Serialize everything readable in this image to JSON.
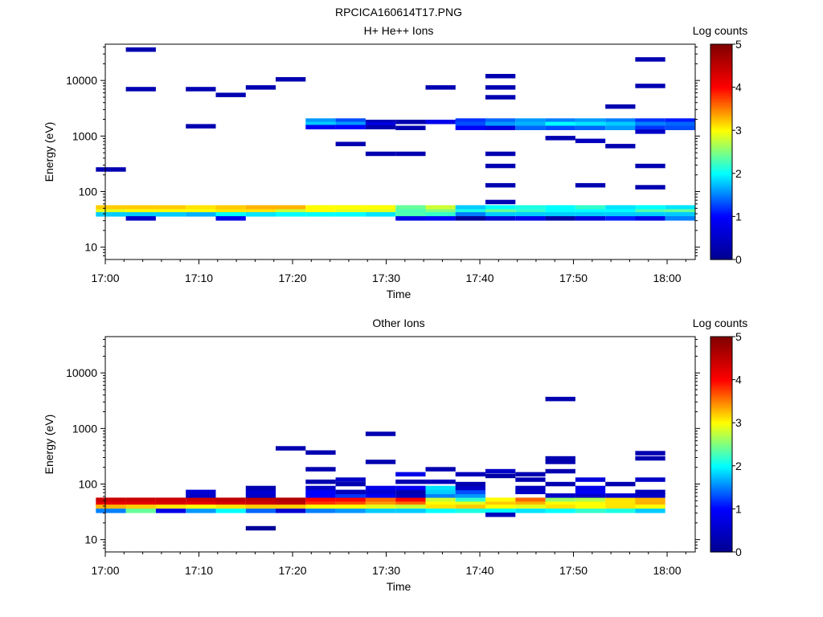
{
  "figure_title": "RPCICA160614T17.PNG",
  "colorbar": {
    "label": "Log counts",
    "ticks": [
      0,
      1,
      2,
      3,
      4,
      5
    ],
    "colormap": [
      "#00008f",
      "#0000ff",
      "#00ffff",
      "#ffff00",
      "#ff0000",
      "#800000"
    ]
  },
  "chart_data": [
    {
      "type": "heatmap",
      "title": "H+ He++ Ions",
      "xlabel": "Time",
      "ylabel": "Energy (eV)",
      "y_scale": "log",
      "ylim": [
        6,
        45000
      ],
      "xlim": [
        "17:00",
        "18:03"
      ],
      "x_ticks": [
        "17:00",
        "17:10",
        "17:20",
        "17:30",
        "17:40",
        "17:50",
        "18:00"
      ],
      "y_ticks": [
        10,
        100,
        1000,
        10000
      ],
      "zlim": [
        0,
        5
      ],
      "time_bins": [
        "17:02.2",
        "17:05.4",
        "17:08.6",
        "17:11.8",
        "17:15.0",
        "17:18.2",
        "17:21.4",
        "17:24.6",
        "17:27.8",
        "17:31.0",
        "17:34.2",
        "17:37.4",
        "17:40.6",
        "17:43.8",
        "17:47.0",
        "17:50.2",
        "17:53.4",
        "17:56.6",
        "17:59.8",
        "18:03.0"
      ],
      "cells": [
        [
          0,
          52,
          3.2
        ],
        [
          0,
          44,
          2.9
        ],
        [
          0,
          39,
          1.8
        ],
        [
          0,
          250,
          0.3
        ],
        [
          1,
          52,
          3.2
        ],
        [
          1,
          44,
          3.0
        ],
        [
          1,
          39,
          1.8
        ],
        [
          1,
          33,
          0.5
        ],
        [
          1,
          7000,
          0.3
        ],
        [
          1,
          36000,
          0.3
        ],
        [
          2,
          52,
          3.2
        ],
        [
          2,
          44,
          3.0
        ],
        [
          2,
          39,
          1.8
        ],
        [
          3,
          52,
          3.1
        ],
        [
          3,
          44,
          3.0
        ],
        [
          3,
          39,
          1.7
        ],
        [
          3,
          1500,
          0.3
        ],
        [
          3,
          7000,
          0.3
        ],
        [
          4,
          52,
          3.2
        ],
        [
          4,
          44,
          3.1
        ],
        [
          4,
          39,
          2.0
        ],
        [
          4,
          33,
          0.8
        ],
        [
          4,
          5500,
          0.3
        ],
        [
          5,
          52,
          3.3
        ],
        [
          5,
          44,
          3.1
        ],
        [
          5,
          39,
          1.9
        ],
        [
          5,
          7500,
          0.3
        ],
        [
          6,
          52,
          3.3
        ],
        [
          6,
          44,
          2.8
        ],
        [
          6,
          39,
          2.0
        ],
        [
          6,
          10500,
          0.3
        ],
        [
          7,
          52,
          3.0
        ],
        [
          7,
          44,
          3.0
        ],
        [
          7,
          39,
          2.0
        ],
        [
          7,
          1900,
          1.6
        ],
        [
          7,
          1650,
          1.8
        ],
        [
          7,
          1450,
          0.9
        ],
        [
          8,
          52,
          3.0
        ],
        [
          8,
          44,
          2.9
        ],
        [
          8,
          39,
          2.0
        ],
        [
          8,
          1900,
          1.3
        ],
        [
          8,
          1650,
          1.6
        ],
        [
          8,
          1450,
          1.0
        ],
        [
          8,
          720,
          0.3
        ],
        [
          9,
          52,
          3.0
        ],
        [
          9,
          44,
          2.9
        ],
        [
          9,
          39,
          1.9
        ],
        [
          9,
          1800,
          0.4
        ],
        [
          9,
          1600,
          0.8
        ],
        [
          9,
          1450,
          0.3
        ],
        [
          9,
          480,
          0.3
        ],
        [
          10,
          52,
          2.4
        ],
        [
          10,
          44,
          2.3
        ],
        [
          10,
          39,
          2.3
        ],
        [
          10,
          33,
          0.8
        ],
        [
          10,
          1800,
          0.3
        ],
        [
          10,
          1400,
          0.3
        ],
        [
          10,
          480,
          0.3
        ],
        [
          11,
          52,
          2.8
        ],
        [
          11,
          44,
          2.5
        ],
        [
          11,
          39,
          2.2
        ],
        [
          11,
          33,
          0.9
        ],
        [
          11,
          1800,
          0.8
        ],
        [
          11,
          7500,
          0.3
        ],
        [
          12,
          52,
          1.8
        ],
        [
          12,
          44,
          2.1
        ],
        [
          12,
          39,
          1.5
        ],
        [
          12,
          33,
          0.1
        ],
        [
          12,
          1900,
          1.2
        ],
        [
          12,
          1650,
          1.3
        ],
        [
          12,
          1400,
          0.9
        ],
        [
          13,
          52,
          2.0
        ],
        [
          13,
          44,
          2.4
        ],
        [
          13,
          39,
          1.8
        ],
        [
          13,
          33,
          0.6
        ],
        [
          13,
          65,
          0.3
        ],
        [
          13,
          1900,
          1.4
        ],
        [
          13,
          1650,
          1.6
        ],
        [
          13,
          1400,
          0.7
        ],
        [
          13,
          480,
          0.3
        ],
        [
          13,
          290,
          0.3
        ],
        [
          13,
          130,
          0.3
        ],
        [
          13,
          5000,
          0.3
        ],
        [
          13,
          7500,
          0.3
        ],
        [
          13,
          12000,
          0.3
        ],
        [
          14,
          52,
          2.1
        ],
        [
          14,
          44,
          2.2
        ],
        [
          14,
          39,
          1.8
        ],
        [
          14,
          33,
          0.8
        ],
        [
          14,
          1900,
          1.6
        ],
        [
          14,
          1650,
          1.7
        ],
        [
          14,
          1400,
          1.4
        ],
        [
          15,
          52,
          2.0
        ],
        [
          15,
          44,
          2.0
        ],
        [
          15,
          39,
          1.8
        ],
        [
          15,
          33,
          0.2
        ],
        [
          15,
          1900,
          1.5
        ],
        [
          15,
          1650,
          2.0
        ],
        [
          15,
          1400,
          1.3
        ],
        [
          15,
          920,
          0.3
        ],
        [
          16,
          52,
          2.2
        ],
        [
          16,
          44,
          2.0
        ],
        [
          16,
          39,
          1.8
        ],
        [
          16,
          33,
          0.7
        ],
        [
          16,
          1900,
          1.6
        ],
        [
          16,
          1650,
          1.9
        ],
        [
          16,
          1400,
          1.4
        ],
        [
          16,
          820,
          0.4
        ],
        [
          16,
          130,
          0.3
        ],
        [
          17,
          52,
          1.9
        ],
        [
          17,
          44,
          2.0
        ],
        [
          17,
          39,
          1.8
        ],
        [
          17,
          33,
          1.1
        ],
        [
          17,
          1900,
          1.5
        ],
        [
          17,
          1650,
          1.8
        ],
        [
          17,
          1400,
          1.6
        ],
        [
          17,
          3400,
          0.3
        ],
        [
          17,
          660,
          0.3
        ],
        [
          18,
          52,
          2.0
        ],
        [
          18,
          44,
          2.3
        ],
        [
          18,
          39,
          1.8
        ],
        [
          18,
          33,
          0.8
        ],
        [
          18,
          1900,
          1.2
        ],
        [
          18,
          1650,
          1.5
        ],
        [
          18,
          1400,
          1.2
        ],
        [
          18,
          1200,
          0.5
        ],
        [
          18,
          24000,
          0.3
        ],
        [
          18,
          8000,
          0.3
        ],
        [
          18,
          290,
          0.3
        ],
        [
          18,
          120,
          0.3
        ],
        [
          19,
          52,
          1.9
        ],
        [
          19,
          44,
          2.4
        ],
        [
          19,
          39,
          1.8
        ],
        [
          19,
          33,
          1.5
        ],
        [
          19,
          1900,
          1.1
        ],
        [
          19,
          1650,
          1.4
        ],
        [
          19,
          1400,
          1.3
        ]
      ]
    },
    {
      "type": "heatmap",
      "title": "Other Ions",
      "xlabel": "Time",
      "ylabel": "Energy (eV)",
      "y_scale": "log",
      "ylim": [
        6,
        45000
      ],
      "xlim": [
        "17:00",
        "18:03"
      ],
      "x_ticks": [
        "17:00",
        "17:10",
        "17:20",
        "17:30",
        "17:40",
        "17:50",
        "18:00"
      ],
      "y_ticks": [
        10,
        100,
        1000,
        10000
      ],
      "zlim": [
        0,
        5
      ],
      "time_bins": [
        "17:02.2",
        "17:05.4",
        "17:08.6",
        "17:11.8",
        "17:15.0",
        "17:18.2",
        "17:21.4",
        "17:24.6",
        "17:27.8",
        "17:31.0",
        "17:34.2",
        "17:37.4",
        "17:40.6",
        "17:43.8",
        "17:47.0",
        "17:50.2",
        "17:53.4",
        "17:56.6",
        "17:59.8",
        "18:03.0"
      ],
      "cells": [
        [
          0,
          52,
          4.4
        ],
        [
          0,
          44,
          4.2
        ],
        [
          0,
          39,
          3.3
        ],
        [
          0,
          33,
          1.5
        ],
        [
          1,
          52,
          4.4
        ],
        [
          1,
          44,
          4.2
        ],
        [
          1,
          39,
          3.2
        ],
        [
          1,
          33,
          2.4
        ],
        [
          2,
          52,
          4.4
        ],
        [
          2,
          44,
          4.3
        ],
        [
          2,
          39,
          3.1
        ],
        [
          2,
          33,
          0.8
        ],
        [
          3,
          52,
          4.4
        ],
        [
          3,
          44,
          4.2
        ],
        [
          3,
          39,
          3.0
        ],
        [
          3,
          33,
          1.6
        ],
        [
          3,
          62,
          0.5
        ],
        [
          3,
          72,
          0.6
        ],
        [
          4,
          52,
          4.5
        ],
        [
          4,
          44,
          4.3
        ],
        [
          4,
          39,
          3.1
        ],
        [
          4,
          33,
          2.0
        ],
        [
          5,
          52,
          4.5
        ],
        [
          5,
          44,
          4.4
        ],
        [
          5,
          39,
          3.2
        ],
        [
          5,
          33,
          1.4
        ],
        [
          5,
          62,
          0.5
        ],
        [
          5,
          72,
          0.6
        ],
        [
          5,
          85,
          0.3
        ],
        [
          5,
          16,
          0.1
        ],
        [
          6,
          52,
          4.6
        ],
        [
          6,
          44,
          4.5
        ],
        [
          6,
          39,
          3.2
        ],
        [
          6,
          33,
          0.6
        ],
        [
          6,
          440,
          0.3
        ],
        [
          7,
          52,
          4.0
        ],
        [
          7,
          44,
          3.8
        ],
        [
          7,
          39,
          3.0
        ],
        [
          7,
          33,
          1.5
        ],
        [
          7,
          62,
          1.0
        ],
        [
          7,
          72,
          1.0
        ],
        [
          7,
          85,
          0.5
        ],
        [
          7,
          110,
          0.3
        ],
        [
          7,
          185,
          0.3
        ],
        [
          7,
          370,
          0.3
        ],
        [
          8,
          52,
          4.0
        ],
        [
          8,
          44,
          3.7
        ],
        [
          8,
          39,
          3.0
        ],
        [
          8,
          33,
          1.6
        ],
        [
          8,
          62,
          1.2
        ],
        [
          8,
          72,
          0.4
        ],
        [
          8,
          100,
          0.3
        ],
        [
          8,
          120,
          0.5
        ],
        [
          9,
          52,
          3.6
        ],
        [
          9,
          44,
          3.4
        ],
        [
          9,
          39,
          2.9
        ],
        [
          9,
          33,
          1.8
        ],
        [
          9,
          62,
          0.9
        ],
        [
          9,
          72,
          0.6
        ],
        [
          9,
          85,
          0.8
        ],
        [
          9,
          250,
          0.3
        ],
        [
          9,
          800,
          0.3
        ],
        [
          10,
          52,
          4.0
        ],
        [
          10,
          44,
          3.6
        ],
        [
          10,
          39,
          2.8
        ],
        [
          10,
          33,
          1.8
        ],
        [
          10,
          62,
          0.4
        ],
        [
          10,
          72,
          0.3
        ],
        [
          10,
          85,
          0.9
        ],
        [
          10,
          110,
          0.3
        ],
        [
          10,
          150,
          0.8
        ],
        [
          11,
          52,
          2.8
        ],
        [
          11,
          44,
          3.0
        ],
        [
          11,
          39,
          3.1
        ],
        [
          11,
          33,
          2.0
        ],
        [
          11,
          62,
          1.5
        ],
        [
          11,
          72,
          1.8
        ],
        [
          11,
          85,
          1.9
        ],
        [
          11,
          110,
          0.4
        ],
        [
          11,
          185,
          0.3
        ],
        [
          12,
          52,
          2.2
        ],
        [
          12,
          44,
          2.9
        ],
        [
          12,
          39,
          3.2
        ],
        [
          12,
          33,
          2.1
        ],
        [
          12,
          62,
          1.6
        ],
        [
          12,
          72,
          1.3
        ],
        [
          12,
          85,
          0.5
        ],
        [
          12,
          100,
          0.3
        ],
        [
          12,
          150,
          0.4
        ],
        [
          13,
          52,
          3.0
        ],
        [
          13,
          44,
          3.2
        ],
        [
          13,
          39,
          3.0
        ],
        [
          13,
          33,
          2.0
        ],
        [
          13,
          28,
          0.4
        ],
        [
          13,
          140,
          0.2
        ],
        [
          13,
          170,
          0.5
        ],
        [
          14,
          52,
          3.6
        ],
        [
          14,
          44,
          3.3
        ],
        [
          14,
          39,
          2.9
        ],
        [
          14,
          33,
          1.9
        ],
        [
          14,
          72,
          0.5
        ],
        [
          14,
          85,
          0.4
        ],
        [
          14,
          120,
          0.3
        ],
        [
          14,
          150,
          0.3
        ],
        [
          15,
          52,
          2.6
        ],
        [
          15,
          44,
          3.0
        ],
        [
          15,
          39,
          3.1
        ],
        [
          15,
          33,
          2.0
        ],
        [
          15,
          62,
          0.5
        ],
        [
          15,
          100,
          0.3
        ],
        [
          15,
          170,
          0.3
        ],
        [
          15,
          250,
          0.3
        ],
        [
          15,
          290,
          0.3
        ],
        [
          15,
          3400,
          0.3
        ],
        [
          16,
          52,
          2.7
        ],
        [
          16,
          44,
          3.0
        ],
        [
          16,
          39,
          3.0
        ],
        [
          16,
          33,
          2.2
        ],
        [
          16,
          62,
          0.5
        ],
        [
          16,
          72,
          0.9
        ],
        [
          16,
          85,
          0.8
        ],
        [
          16,
          120,
          0.7
        ],
        [
          17,
          52,
          3.1
        ],
        [
          17,
          44,
          3.1
        ],
        [
          17,
          39,
          3.1
        ],
        [
          17,
          33,
          2.1
        ],
        [
          17,
          62,
          0.6
        ],
        [
          17,
          100,
          0.3
        ],
        [
          18,
          52,
          3.3
        ],
        [
          18,
          44,
          3.3
        ],
        [
          18,
          39,
          3.0
        ],
        [
          18,
          33,
          1.8
        ],
        [
          18,
          62,
          0.5
        ],
        [
          18,
          72,
          0.4
        ],
        [
          18,
          120,
          0.5
        ],
        [
          18,
          290,
          0.3
        ],
        [
          18,
          360,
          0.3
        ]
      ]
    }
  ]
}
